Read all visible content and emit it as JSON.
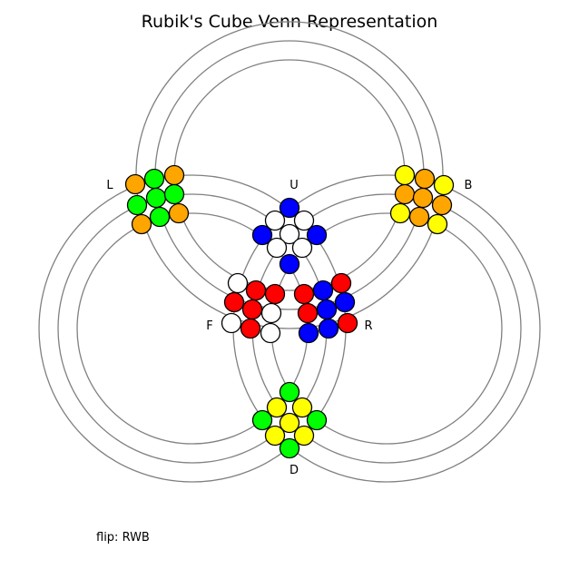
{
  "title": "Rubik's Cube Venn Representation",
  "caption": "flip: RWB",
  "ring_color": "#808080",
  "colors": {
    "blue": "#0000ff",
    "white": "#ffffff",
    "red": "#ff0000",
    "green": "#00ff00",
    "yellow": "#ffff00",
    "orange": "#ffa500"
  },
  "faces": [
    {
      "id": "U",
      "label": "U",
      "stickers": [
        "blue",
        "white",
        "white",
        "blue",
        "white",
        "blue",
        "white",
        "white",
        "blue"
      ]
    },
    {
      "id": "L",
      "label": "L",
      "stickers": [
        "orange",
        "green",
        "orange",
        "green",
        "green",
        "green",
        "orange",
        "green",
        "orange"
      ]
    },
    {
      "id": "B",
      "label": "B",
      "stickers": [
        "yellow",
        "orange",
        "yellow",
        "orange",
        "orange",
        "orange",
        "yellow",
        "orange",
        "yellow"
      ]
    },
    {
      "id": "F",
      "label": "F",
      "stickers": [
        "white",
        "red",
        "red",
        "red",
        "red",
        "white",
        "white",
        "red",
        "white"
      ]
    },
    {
      "id": "R",
      "label": "R",
      "stickers": [
        "red",
        "blue",
        "red",
        "red",
        "blue",
        "blue",
        "blue",
        "blue",
        "red"
      ]
    },
    {
      "id": "D",
      "label": "D",
      "stickers": [
        "green",
        "yellow",
        "yellow",
        "green",
        "yellow",
        "green",
        "yellow",
        "yellow",
        "green"
      ]
    }
  ]
}
